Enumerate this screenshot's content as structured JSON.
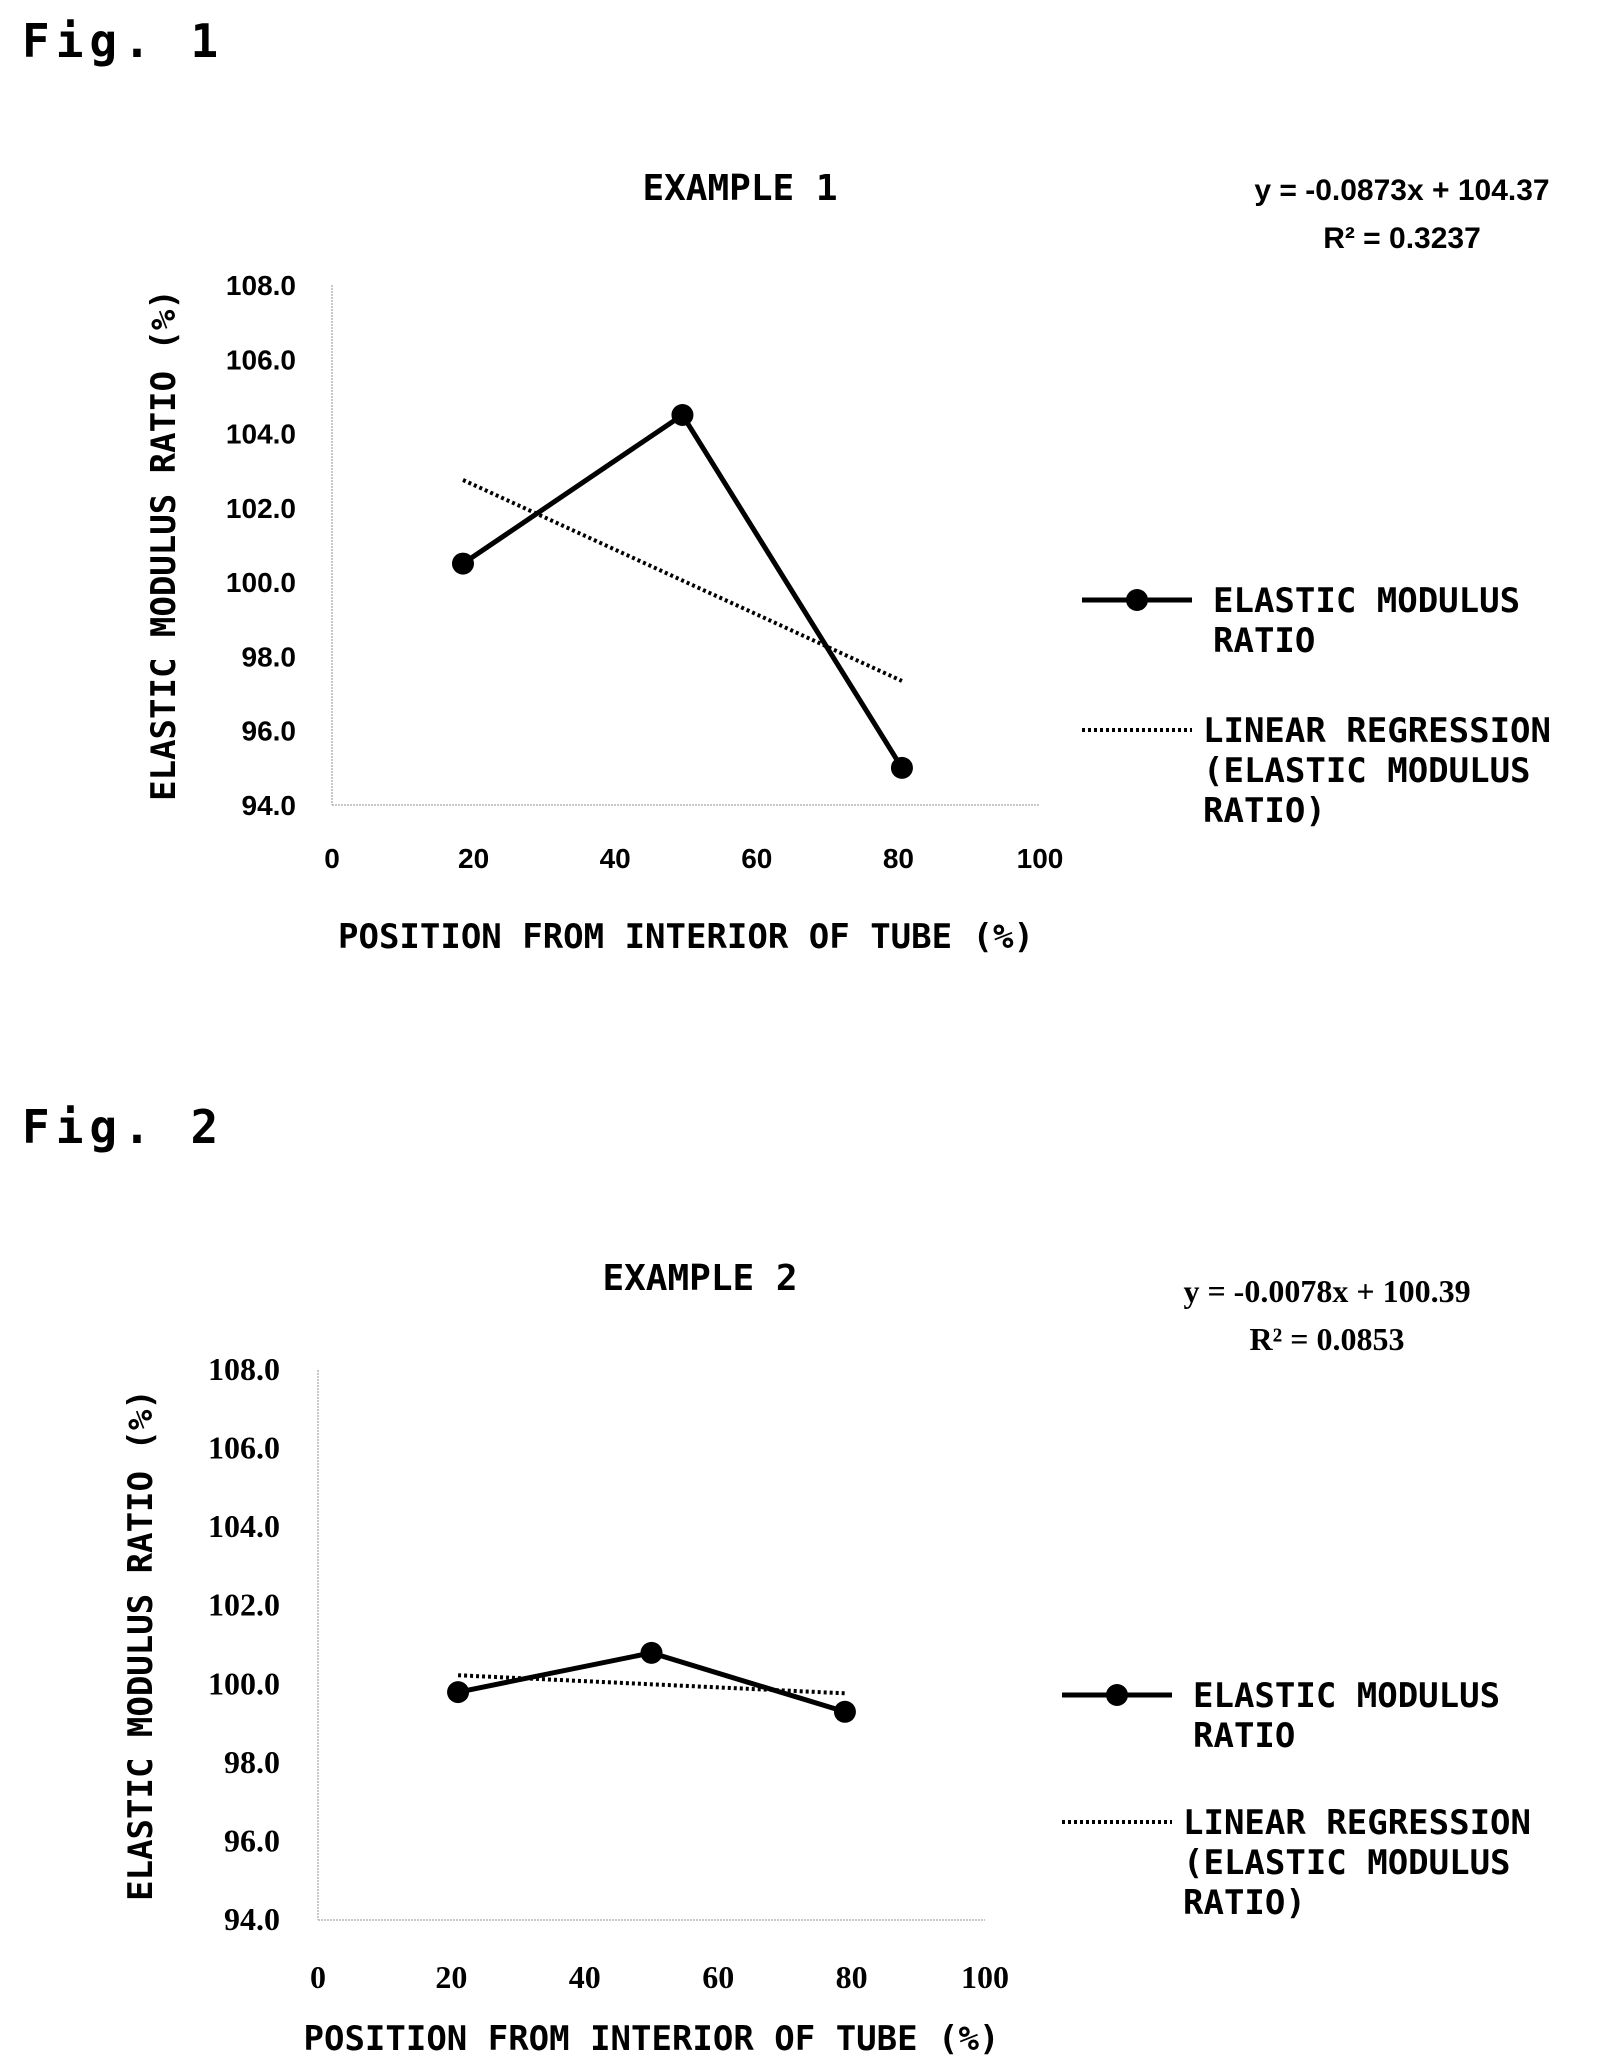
{
  "fig1_label": "Fig. 1",
  "fig2_label": "Fig. 2",
  "chart_data": [
    {
      "type": "line",
      "title": "EXAMPLE 1",
      "xlabel": "POSITION FROM INTERIOR OF TUBE (%)",
      "ylabel": "ELASTIC MODULUS RATIO (%)",
      "xlim": [
        0,
        100
      ],
      "ylim": [
        94.0,
        108.0
      ],
      "x_ticks": [
        "0",
        "20",
        "40",
        "60",
        "80",
        "100"
      ],
      "y_ticks": [
        "94.0",
        "96.0",
        "98.0",
        "100.0",
        "102.0",
        "104.0",
        "106.0",
        "108.0"
      ],
      "equation": "y = -0.0873x + 104.37",
      "r_squared": "R² = 0.3237",
      "grid": false,
      "legend_position": "right",
      "series": [
        {
          "name": "ELASTIC MODULUS RATIO",
          "style": "solid-with-markers",
          "x": [
            18.5,
            49.5,
            80.5
          ],
          "y": [
            100.5,
            104.5,
            95.0
          ]
        },
        {
          "name": "LINEAR REGRESSION (ELASTIC MODULUS RATIO)",
          "style": "dotted",
          "x": [
            18.5,
            80.5
          ],
          "y": [
            102.75,
            97.34
          ]
        }
      ],
      "legend_lines": [
        [
          "ELASTIC MODULUS",
          "RATIO"
        ],
        [
          "LINEAR REGRESSION",
          "(ELASTIC MODULUS",
          "RATIO)"
        ]
      ]
    },
    {
      "type": "line",
      "title": "EXAMPLE 2",
      "xlabel": "POSITION FROM INTERIOR OF TUBE (%)",
      "ylabel": "ELASTIC MODULUS RATIO (%)",
      "xlim": [
        0,
        100
      ],
      "ylim": [
        94.0,
        108.0
      ],
      "x_ticks": [
        "0",
        "20",
        "40",
        "60",
        "80",
        "100"
      ],
      "y_ticks": [
        "94.0",
        "96.0",
        "98.0",
        "100.0",
        "102.0",
        "104.0",
        "106.0",
        "108.0"
      ],
      "equation": "y = -0.0078x + 100.39",
      "r_squared": "R² = 0.0853",
      "grid": false,
      "legend_position": "right",
      "series": [
        {
          "name": "ELASTIC MODULUS RATIO",
          "style": "solid-with-markers",
          "x": [
            21,
            50,
            79
          ],
          "y": [
            99.8,
            100.8,
            99.3
          ]
        },
        {
          "name": "LINEAR REGRESSION (ELASTIC MODULUS RATIO)",
          "style": "dotted",
          "x": [
            21,
            79
          ],
          "y": [
            100.23,
            99.77
          ]
        }
      ],
      "legend_lines": [
        [
          "ELASTIC MODULUS",
          "RATIO"
        ],
        [
          "LINEAR REGRESSION",
          "(ELASTIC MODULUS",
          "RATIO)"
        ]
      ]
    }
  ]
}
